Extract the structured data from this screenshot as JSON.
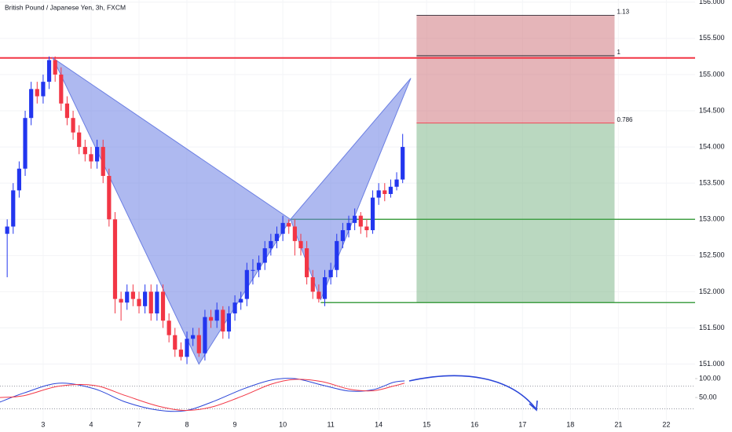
{
  "chart_data": [
    {
      "type": "candlestick",
      "title": "British Pound / Japanese Yen, 3h, FXCM",
      "x": [
        -0.75,
        -0.625,
        -0.5,
        -0.375,
        -0.25,
        -0.125,
        0,
        0.125,
        0.25,
        0.375,
        0.5,
        0.625,
        0.75,
        0.875,
        1,
        1.125,
        1.25,
        1.375,
        1.5,
        1.625,
        1.75,
        1.875,
        2,
        2.125,
        2.25,
        2.375,
        2.5,
        2.625,
        2.75,
        2.875,
        3,
        3.125,
        3.25,
        3.375,
        3.5,
        3.625,
        3.75,
        3.875,
        4,
        4.125,
        4.25,
        4.375,
        4.5,
        4.625,
        4.75,
        4.875,
        5,
        5.125,
        5.25,
        5.375,
        5.5,
        5.625,
        5.75,
        5.875,
        6,
        6.125,
        6.25,
        6.375,
        6.5,
        6.625,
        6.75,
        6.875,
        7,
        7.125,
        7.25,
        7.375,
        7.5
      ],
      "open": [
        152.8,
        152.9,
        153.4,
        153.7,
        154.4,
        154.8,
        154.7,
        154.9,
        155.2,
        155.0,
        154.6,
        154.4,
        154.2,
        154.0,
        153.9,
        153.8,
        154.0,
        153.6,
        153.0,
        151.9,
        151.85,
        152.0,
        151.9,
        151.8,
        152.0,
        151.7,
        152.0,
        151.6,
        151.4,
        151.2,
        151.1,
        151.35,
        151.4,
        151.15,
        151.65,
        151.6,
        151.75,
        151.45,
        151.7,
        151.85,
        151.9,
        152.3,
        152.3,
        152.4,
        152.6,
        152.7,
        152.8,
        152.95,
        152.9,
        152.7,
        152.6,
        152.2,
        152.0,
        151.9,
        152.2,
        152.3,
        152.7,
        152.85,
        152.95,
        153.05,
        152.9,
        152.85,
        153.3,
        153.4,
        153.35,
        153.45,
        153.55
      ],
      "high": [
        153.0,
        153.5,
        153.8,
        154.5,
        154.9,
        154.9,
        155.0,
        155.25,
        155.25,
        155.1,
        154.7,
        154.5,
        154.3,
        154.1,
        154.0,
        154.1,
        154.1,
        153.7,
        153.1,
        152.0,
        152.1,
        152.1,
        152.0,
        152.1,
        152.1,
        152.1,
        152.1,
        151.7,
        151.5,
        151.3,
        151.45,
        151.5,
        151.5,
        151.75,
        151.75,
        151.85,
        151.8,
        151.8,
        151.95,
        152.0,
        152.4,
        152.45,
        152.5,
        152.7,
        152.8,
        152.9,
        153.05,
        153.0,
        153.0,
        152.8,
        152.7,
        152.3,
        152.1,
        152.3,
        152.4,
        152.8,
        152.95,
        153.05,
        153.15,
        153.1,
        153.0,
        153.4,
        153.5,
        153.5,
        153.55,
        153.65,
        154.18
      ],
      "low": [
        152.2,
        152.8,
        153.3,
        153.6,
        154.3,
        154.6,
        154.6,
        154.8,
        154.9,
        154.5,
        154.3,
        154.1,
        153.9,
        153.8,
        153.7,
        153.7,
        153.5,
        152.9,
        151.7,
        151.6,
        151.75,
        151.8,
        151.7,
        151.7,
        151.6,
        151.6,
        151.5,
        151.3,
        151.1,
        151.05,
        151.0,
        151.25,
        151.1,
        151.05,
        151.5,
        151.5,
        151.35,
        151.35,
        151.6,
        151.75,
        151.8,
        152.1,
        152.2,
        152.3,
        152.5,
        152.6,
        152.7,
        152.8,
        152.5,
        152.5,
        152.1,
        151.9,
        151.85,
        151.8,
        152.1,
        152.2,
        152.6,
        152.75,
        152.85,
        152.8,
        152.75,
        152.8,
        153.2,
        153.25,
        153.3,
        153.4,
        153.5
      ],
      "close": [
        152.9,
        153.4,
        153.7,
        154.4,
        154.8,
        154.7,
        154.9,
        155.2,
        155.0,
        154.6,
        154.4,
        154.2,
        154.0,
        153.9,
        153.8,
        154.0,
        153.6,
        153.0,
        151.9,
        151.85,
        152.0,
        151.9,
        151.8,
        152.0,
        151.7,
        152.0,
        151.6,
        151.4,
        151.2,
        151.1,
        151.35,
        151.4,
        151.15,
        151.65,
        151.6,
        151.75,
        151.45,
        151.7,
        151.85,
        151.9,
        152.3,
        152.3,
        152.4,
        152.6,
        152.7,
        152.8,
        152.95,
        152.9,
        152.7,
        152.6,
        152.2,
        152.0,
        151.9,
        152.2,
        152.3,
        152.7,
        152.85,
        152.95,
        153.05,
        152.9,
        152.85,
        153.3,
        153.4,
        153.35,
        153.45,
        153.55,
        154.0
      ],
      "up_color": "#2236ef",
      "down_color": "#f23645",
      "xlim": [
        -0.9,
        13.6
      ],
      "xticks": [
        {
          "value": 0,
          "label": "3"
        },
        {
          "value": 1,
          "label": "4"
        },
        {
          "value": 2,
          "label": "7"
        },
        {
          "value": 3,
          "label": "8"
        },
        {
          "value": 4,
          "label": "9"
        },
        {
          "value": 5,
          "label": "10"
        },
        {
          "value": 6,
          "label": "11"
        },
        {
          "value": 7,
          "label": "14"
        },
        {
          "value": 8,
          "label": "15"
        },
        {
          "value": 9,
          "label": "16"
        },
        {
          "value": 10,
          "label": "17"
        },
        {
          "value": 11,
          "label": "18"
        },
        {
          "value": 12,
          "label": "21"
        },
        {
          "value": 13,
          "label": "22"
        }
      ],
      "ylim": [
        150.93,
        156.03
      ],
      "yticks": [
        {
          "value": 151,
          "label": "151.000"
        },
        {
          "value": 151.5,
          "label": "151.500"
        },
        {
          "value": 152,
          "label": "152.000"
        },
        {
          "value": 152.5,
          "label": "152.500"
        },
        {
          "value": 153,
          "label": "153.000"
        },
        {
          "value": 153.5,
          "label": "153.500"
        },
        {
          "value": 154,
          "label": "154.000"
        },
        {
          "value": 154.5,
          "label": "154.500"
        },
        {
          "value": 155,
          "label": "155.000"
        },
        {
          "value": 155.5,
          "label": "155.500"
        },
        {
          "value": 156,
          "label": "156.000"
        }
      ],
      "lines": [
        {
          "price": 155.23,
          "from": -0.9,
          "color": "#f23645"
        },
        {
          "price": 153.0,
          "from": 5.16,
          "color": "#43a047"
        },
        {
          "price": 151.85,
          "from": 5.79,
          "color": "#43a047"
        }
      ],
      "pattern": {
        "x": [
          0.2,
          3.25,
          5.16,
          5.79,
          7.67
        ],
        "y": [
          155.23,
          151.0,
          153.0,
          151.89,
          154.95
        ],
        "color": "#6b7fe3"
      },
      "fib": {
        "x": [
          7.79,
          11.92
        ],
        "top": 155.82,
        "split": 154.33,
        "bottom": 151.85,
        "levels": [
          {
            "value": 155.82,
            "label": "1.13",
            "color": "#131722"
          },
          {
            "value": 155.26,
            "label": "1",
            "color": "#131722"
          },
          {
            "value": 154.33,
            "label": "0.786",
            "color": "#f23645"
          }
        ]
      }
    },
    {
      "type": "line",
      "x": [
        -0.9,
        -0.4,
        0.33,
        1.07,
        1.72,
        2.38,
        2.95,
        3.52,
        4.18,
        4.75,
        5.25,
        5.82,
        6.39,
        6.89,
        7.3,
        7.54
      ],
      "series": [
        {
          "color": "#2a45d8",
          "values": [
            38,
            62,
            88,
            73,
            38,
            17,
            15,
            38,
            73,
            96,
            100,
            83,
            67,
            71,
            90,
            94
          ]
        },
        {
          "color": "#f23645",
          "values": [
            50,
            55,
            80,
            82,
            55,
            28,
            16,
            25,
            55,
            85,
            98,
            92,
            72,
            68,
            80,
            88
          ]
        }
      ],
      "ylim": [
        -10,
        125
      ],
      "yticks": [
        {
          "value": 50,
          "label": "50.00"
        },
        {
          "value": 100,
          "label": "100.00"
        }
      ],
      "levels": [
        80,
        20
      ]
    }
  ]
}
